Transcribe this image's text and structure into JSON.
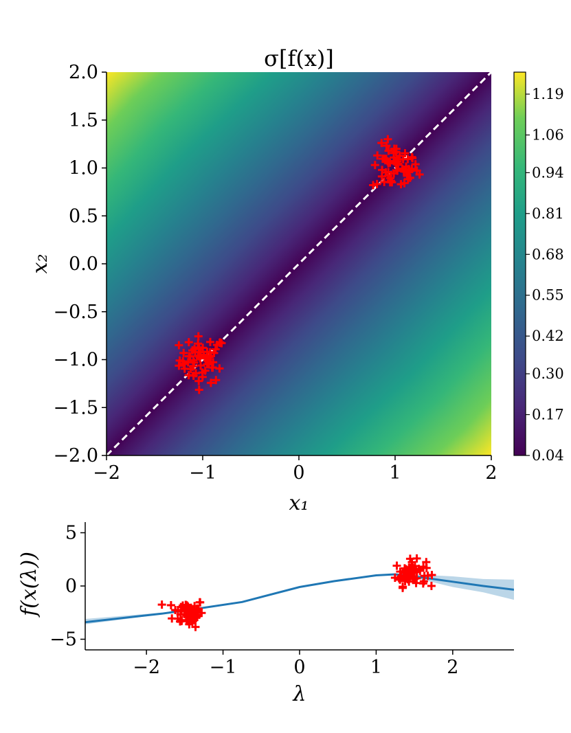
{
  "chart_data": [
    {
      "type": "heatmap",
      "title": "σ[f(x)]",
      "xlabel": "x₁",
      "ylabel": "x₂",
      "xlim": [
        -2,
        2
      ],
      "ylim": [
        -2,
        2
      ],
      "xticks": [
        "−2",
        "−1",
        "0",
        "1",
        "2"
      ],
      "yticks": [
        "2.0",
        "1.5",
        "1.0",
        "0.5",
        "0.0",
        "−0.5",
        "−1.0",
        "−1.5",
        "−2.0"
      ],
      "colormap": "viridis",
      "colorbar": {
        "min": 0.04,
        "max": 1.26,
        "ticks": [
          "1.19",
          "1.06",
          "0.94",
          "0.81",
          "0.68",
          "0.55",
          "0.42",
          "0.30",
          "0.17",
          "0.04"
        ]
      },
      "value_model": "std grows with distance from the diagonal x2 = x1; minimum 0.04 along the diagonal near the data clusters, maximum ~1.26 at corners (-2,2) and (2,-2)",
      "dashed_line": {
        "from": [
          -2,
          -2
        ],
        "to": [
          2,
          2
        ],
        "color": "#ffffff"
      },
      "clusters": [
        {
          "center": [
            -1.0,
            -1.0
          ],
          "spread": 0.12,
          "n": 60
        },
        {
          "center": [
            1.0,
            1.0
          ],
          "spread": 0.12,
          "n": 60
        }
      ],
      "marker": {
        "symbol": "+",
        "color": "#ff0000"
      }
    },
    {
      "type": "line",
      "title": "",
      "xlabel": "λ",
      "ylabel": "f(x(λ))",
      "xlim": [
        -2.8,
        2.8
      ],
      "ylim": [
        -6,
        6
      ],
      "xticks": [
        "−2",
        "−1",
        "0",
        "1",
        "2"
      ],
      "yticks": [
        "5",
        "0",
        "−5"
      ],
      "series": [
        {
          "color": "#1f77b4",
          "x": [
            -2.8,
            -1.8,
            -1.4,
            -0.75,
            0.0,
            0.45,
            1.0,
            1.25,
            1.6,
            2.0,
            2.4,
            2.8
          ],
          "y": [
            -3.4,
            -2.6,
            -2.2,
            -1.5,
            -0.1,
            0.45,
            1.0,
            1.1,
            0.8,
            0.4,
            0.0,
            -0.35
          ],
          "band_lower": [
            -3.6,
            -2.65,
            -2.25,
            -1.5,
            -0.1,
            0.45,
            0.98,
            1.05,
            0.6,
            -0.1,
            -0.6,
            -1.3
          ],
          "band_upper": [
            -3.1,
            -2.5,
            -2.15,
            -1.5,
            -0.1,
            0.45,
            1.02,
            1.15,
            1.05,
            0.9,
            0.65,
            0.6
          ]
        }
      ],
      "clusters": [
        {
          "center": [
            -1.45,
            -2.5
          ],
          "spread": [
            0.1,
            0.65
          ],
          "n": 60
        },
        {
          "center": [
            1.45,
            1.2
          ],
          "spread": [
            0.1,
            0.6
          ],
          "n": 60
        }
      ],
      "marker": {
        "symbol": "+",
        "color": "#ff0000"
      }
    }
  ]
}
